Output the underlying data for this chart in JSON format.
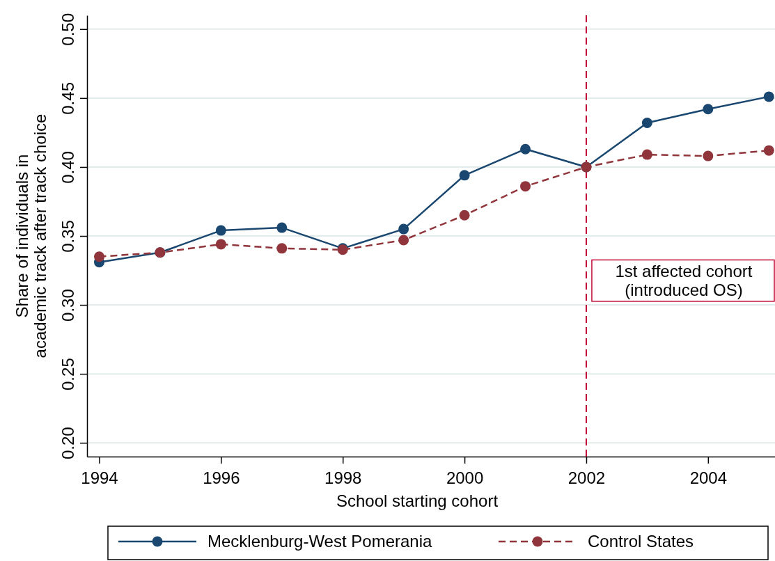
{
  "chart_data": {
    "type": "line",
    "xlabel": "School starting cohort",
    "ylabel": "Share of individuals in\nacademic track after track choice",
    "x": [
      1994,
      1995,
      1996,
      1997,
      1998,
      1999,
      2000,
      2001,
      2002,
      2003,
      2004,
      2005
    ],
    "series": [
      {
        "name": "Mecklenburg-West Pomerania",
        "color": "#1a476f",
        "line_style": "solid",
        "values": [
          0.331,
          0.338,
          0.354,
          0.356,
          0.341,
          0.355,
          0.394,
          0.413,
          0.4,
          0.432,
          0.442,
          0.451
        ]
      },
      {
        "name": "Control States",
        "color": "#90353b",
        "line_style": "dashed",
        "values": [
          0.335,
          0.338,
          0.344,
          0.341,
          0.34,
          0.347,
          0.365,
          0.386,
          0.4,
          0.409,
          0.408,
          0.412
        ]
      }
    ],
    "xlim": [
      1993.8,
      2005.1
    ],
    "xticks": [
      1994,
      1996,
      1998,
      2000,
      2002,
      2004
    ],
    "ylim": [
      0.19,
      0.51
    ],
    "yticks": [
      {
        "value": 0.2,
        "label": "0.20"
      },
      {
        "value": 0.25,
        "label": "0.25"
      },
      {
        "value": 0.3,
        "label": "0.30"
      },
      {
        "value": 0.35,
        "label": "0.35"
      },
      {
        "value": 0.4,
        "label": "0.40"
      },
      {
        "value": 0.45,
        "label": "0.45"
      },
      {
        "value": 0.5,
        "label": "0.50"
      }
    ],
    "ref_lines": [
      {
        "axis": "x",
        "value": 2002,
        "label": "1st affected cohort\n(introduced OS)",
        "color": "#c10534",
        "line_style": "dashed"
      }
    ],
    "grid": "y",
    "legend": "bottom",
    "marker": "circle"
  }
}
